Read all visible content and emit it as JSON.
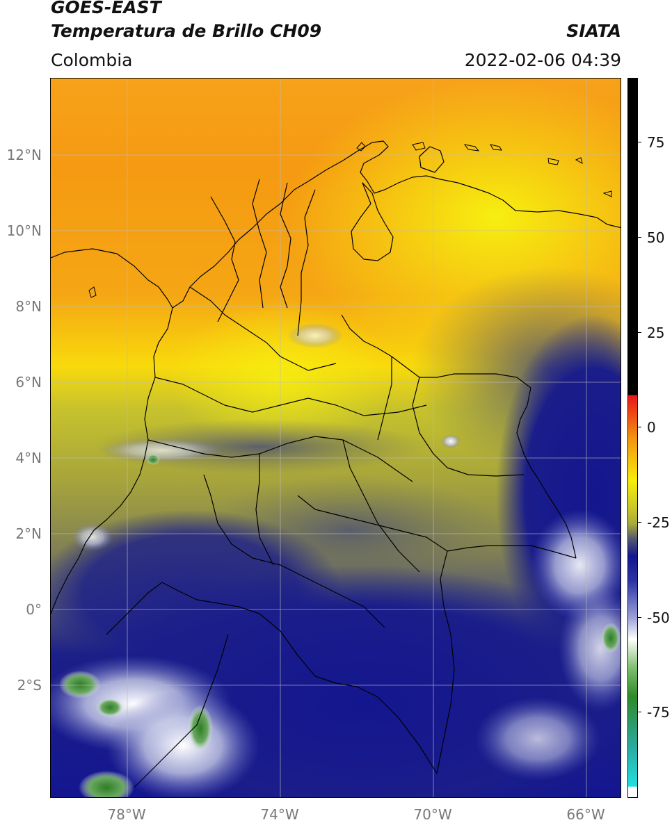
{
  "header": {
    "title_line1": "GOES-EAST",
    "title_line2": "Temperatura de Brillo CH09",
    "org": "SIATA",
    "region": "Colombia",
    "datetime": "2022-02-06 04:39"
  },
  "map": {
    "lat_labels": [
      "12°N",
      "10°N",
      "8°N",
      "6°N",
      "4°N",
      "2°N",
      "0°",
      "2°S"
    ],
    "lon_labels": [
      "78°W",
      "74°W",
      "70°W",
      "66°W"
    ]
  },
  "colorbar": {
    "labels": [
      "75",
      "50",
      "25",
      "0",
      "-25",
      "-50",
      "-75"
    ],
    "range": [
      -95,
      90
    ],
    "colors": {
      "hot": "#000000",
      "red": "#e8161a",
      "orange": "#f29310",
      "yellow": "#f7ee0a",
      "olive": "#a7a93a",
      "gray": "#555a6e",
      "navy": "#13168e",
      "white": "#ffffff",
      "green": "#2f8a2a",
      "cyan": "#20d0d0"
    }
  }
}
